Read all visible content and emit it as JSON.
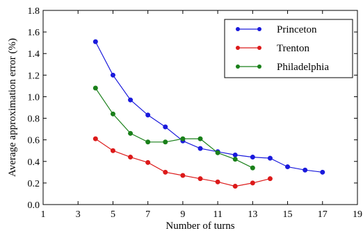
{
  "chart_data": {
    "type": "line",
    "xlabel": "Number of turns",
    "ylabel": "Average approximation error (%)",
    "xlim": [
      1,
      19
    ],
    "ylim": [
      0.0,
      1.8
    ],
    "xticks": [
      1,
      3,
      5,
      7,
      9,
      11,
      13,
      15,
      17,
      19
    ],
    "yticks": [
      0.0,
      0.2,
      0.4,
      0.6,
      0.8,
      1.0,
      1.2,
      1.4,
      1.6,
      1.8
    ],
    "xtick_labels": [
      "1",
      "3",
      "5",
      "7",
      "9",
      "11",
      "13",
      "15",
      "17",
      "19"
    ],
    "ytick_labels": [
      "0.0",
      "0.2",
      "0.4",
      "0.6",
      "0.8",
      "1.0",
      "1.2",
      "1.4",
      "1.6",
      "1.8"
    ],
    "grid": false,
    "legend_position": "top-right",
    "series": [
      {
        "name": "Princeton",
        "color": "#1a1adc",
        "x": [
          4,
          5,
          6,
          7,
          8,
          9,
          10,
          11,
          12,
          13,
          14,
          15,
          16,
          17
        ],
        "y": [
          1.51,
          1.2,
          0.97,
          0.83,
          0.72,
          0.59,
          0.52,
          0.49,
          0.46,
          0.44,
          0.43,
          0.35,
          0.32,
          0.3
        ]
      },
      {
        "name": "Trenton",
        "color": "#dc1a1a",
        "x": [
          4,
          5,
          6,
          7,
          8,
          9,
          10,
          11,
          12,
          13,
          14
        ],
        "y": [
          0.61,
          0.5,
          0.44,
          0.39,
          0.3,
          0.27,
          0.24,
          0.21,
          0.17,
          0.2,
          0.24
        ]
      },
      {
        "name": "Philadelphia",
        "color": "#1a801a",
        "x": [
          4,
          5,
          6,
          7,
          8,
          9,
          10,
          11,
          12,
          13
        ],
        "y": [
          1.08,
          0.84,
          0.66,
          0.58,
          0.58,
          0.61,
          0.61,
          0.48,
          0.42,
          0.34
        ]
      }
    ]
  }
}
